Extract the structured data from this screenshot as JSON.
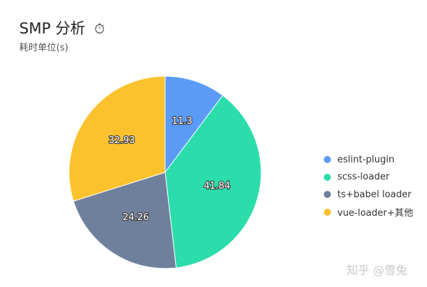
{
  "header": {
    "title": "SMP 分析",
    "title_icon": "stopwatch-icon",
    "title_icon_glyph": "⏱",
    "subtitle": "耗时单位(s)"
  },
  "chart_data": {
    "type": "pie",
    "title": "SMP 分析",
    "subtitle": "耗时单位(s)",
    "categories": [
      "eslint-plugin",
      "scss-loader",
      "ts+babel loader",
      "vue-loader+其他"
    ],
    "values": [
      11.3,
      41.84,
      24.26,
      32.93
    ],
    "colors": [
      "#5B9BF8",
      "#2BDDAB",
      "#6F809D",
      "#FCC22E"
    ],
    "data_labels": [
      "11.3",
      "41.84",
      "24.26",
      "32.93"
    ],
    "start": "12 o'clock",
    "direction": "clockwise",
    "legend_position": "right"
  },
  "watermark": "知乎 @雪兔"
}
